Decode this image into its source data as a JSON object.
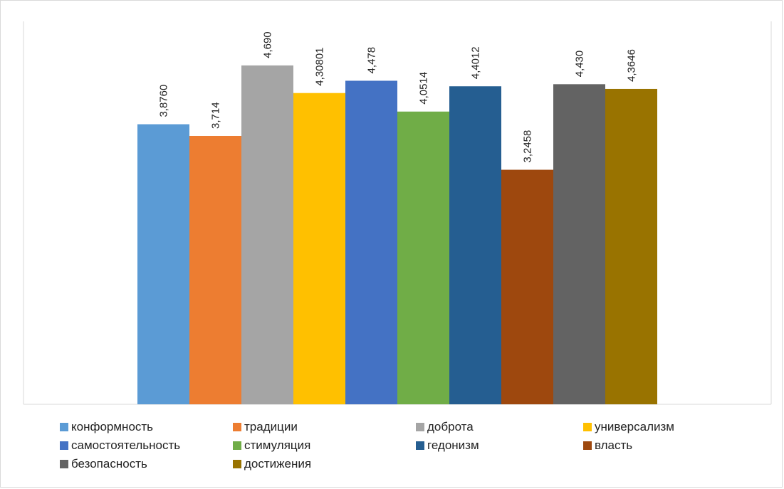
{
  "chart_data": {
    "type": "bar",
    "title": "",
    "xlabel": "",
    "ylabel": "",
    "grid": false,
    "legend_position": "bottom",
    "categories": [
      "конформность",
      "традиции",
      "доброта",
      "универсализм",
      "самостоятельность",
      "стимуляция",
      "гедонизм",
      "власть",
      "безопасность",
      "достижения"
    ],
    "values": [
      3.876,
      3.714,
      4.69,
      4.30801,
      4.478,
      4.0514,
      4.4012,
      3.2458,
      4.43,
      4.3646
    ],
    "value_labels": [
      "3,8760",
      "3,714",
      "4,690",
      "4,30801",
      "4,478",
      "4,0514",
      "4,4012",
      "3,2458",
      "4,430",
      "4,3646"
    ],
    "colors": [
      "#5b9bd5",
      "#ed7d31",
      "#a5a5a5",
      "#ffc000",
      "#4472c4",
      "#70ad47",
      "#255e91",
      "#9e480e",
      "#636363",
      "#997300"
    ],
    "ylim": [
      0,
      5.3
    ]
  }
}
